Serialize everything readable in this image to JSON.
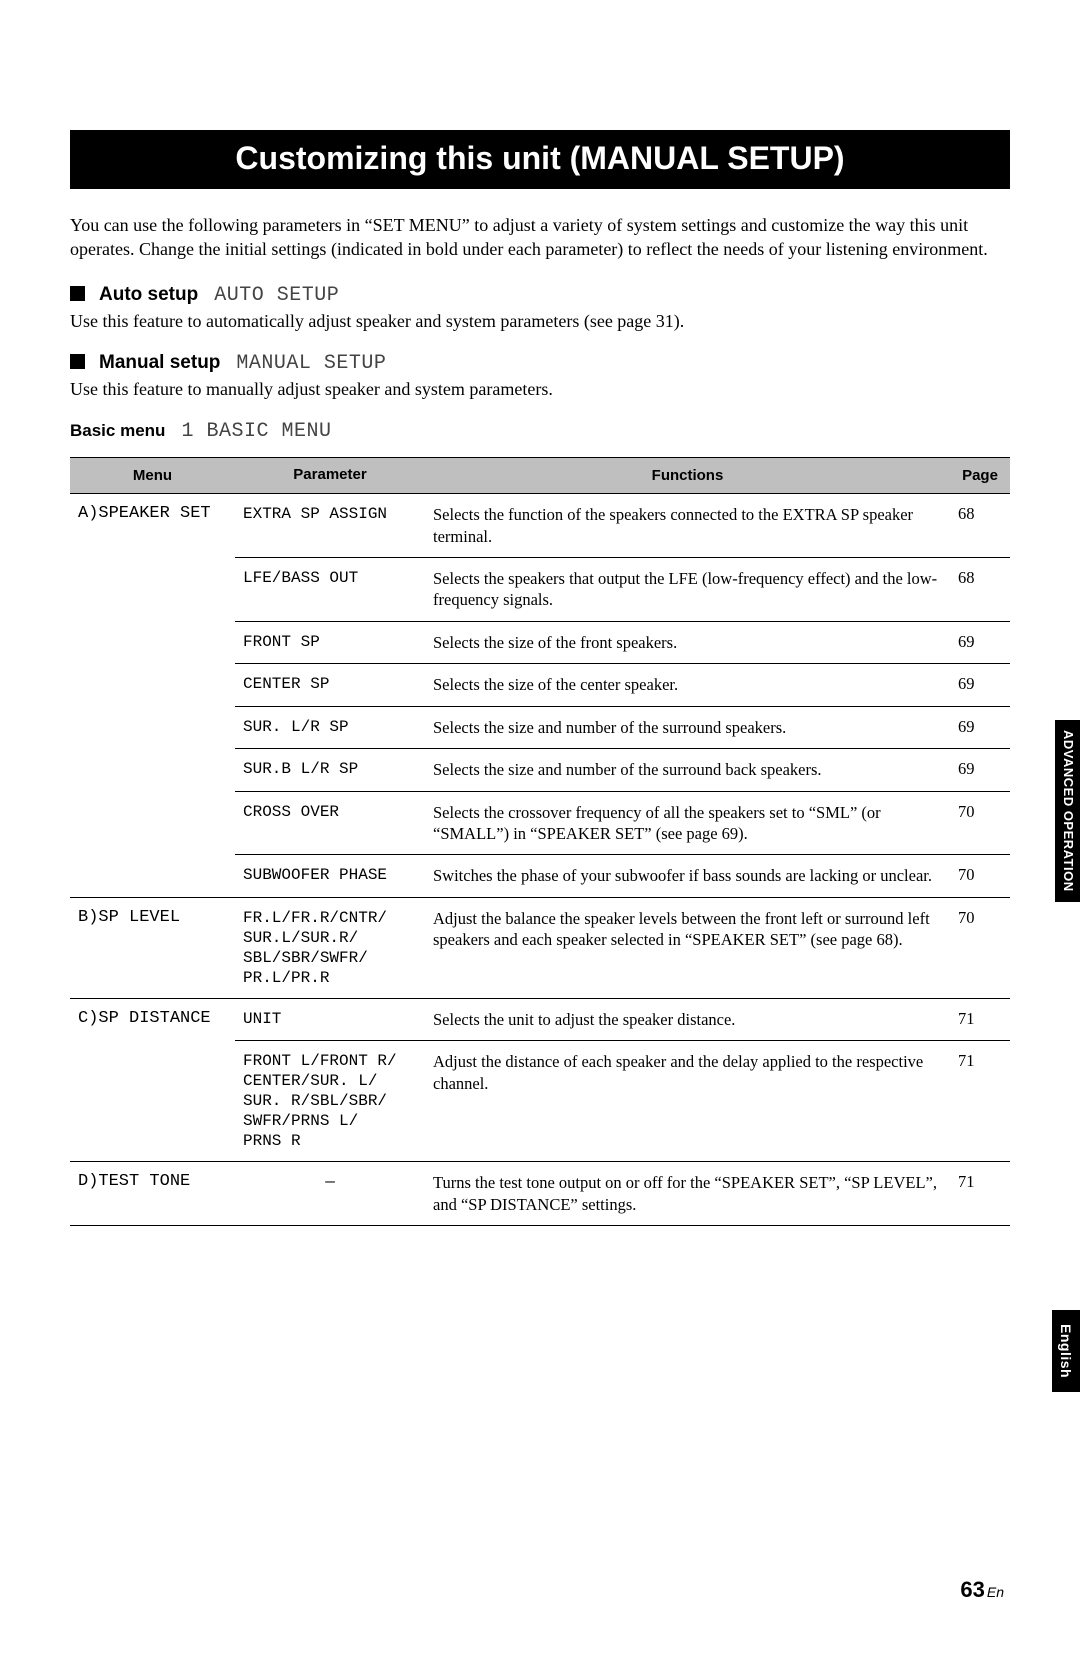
{
  "title": "Customizing this unit (MANUAL SETUP)",
  "intro": "You can use the following parameters in “SET MENU” to adjust a variety of system settings and customize the way this unit operates. Change the initial settings (indicated in bold under each parameter) to reflect the needs of your listening environment.",
  "sections": {
    "auto": {
      "label": "Auto setup",
      "osd": "AUTO SETUP",
      "desc": "Use this feature to automatically adjust speaker and system parameters (see page 31)."
    },
    "manual": {
      "label": "Manual setup",
      "osd": "MANUAL SETUP",
      "desc": "Use this feature to manually adjust speaker and system parameters."
    }
  },
  "basic": {
    "label": "Basic menu",
    "osd": "1 BASIC MENU"
  },
  "columns": {
    "menu": "Menu",
    "parameter": "Parameter",
    "functions": "Functions",
    "page": "Page"
  },
  "rows": [
    {
      "menu": "A)SPEAKER SET",
      "param": "EXTRA SP ASSIGN",
      "func": "Selects the function of the speakers connected to the EXTRA SP speaker terminal.",
      "page": "68",
      "group_end": false
    },
    {
      "menu": "",
      "param": "LFE/BASS OUT",
      "func": "Selects the speakers that output the LFE (low-frequency effect) and the low-frequency signals.",
      "page": "68",
      "group_end": false
    },
    {
      "menu": "",
      "param": "FRONT SP",
      "func": "Selects the size of the front speakers.",
      "page": "69",
      "group_end": false
    },
    {
      "menu": "",
      "param": "CENTER SP",
      "func": "Selects the size of the center speaker.",
      "page": "69",
      "group_end": false
    },
    {
      "menu": "",
      "param": "SUR. L/R SP",
      "func": "Selects the size and number of the surround speakers.",
      "page": "69",
      "group_end": false
    },
    {
      "menu": "",
      "param": "SUR.B L/R SP",
      "func": "Selects the size and number of the surround back speakers.",
      "page": "69",
      "group_end": false
    },
    {
      "menu": "",
      "param": "CROSS OVER",
      "func": "Selects the crossover frequency of all the speakers set to “SML” (or “SMALL”) in “SPEAKER SET” (see page 69).",
      "page": "70",
      "group_end": false
    },
    {
      "menu": "",
      "param": "SUBWOOFER PHASE",
      "func": "Switches the phase of your subwoofer if bass sounds are lacking or unclear.",
      "page": "70",
      "group_end": true
    },
    {
      "menu": "B)SP LEVEL",
      "param": "FR.L/FR.R/CNTR/\nSUR.L/SUR.R/\nSBL/SBR/SWFR/\nPR.L/PR.R",
      "func": "Adjust the balance the speaker levels between the front left or surround left speakers and each speaker selected in “SPEAKER SET” (see page 68).",
      "page": "70",
      "group_end": true
    },
    {
      "menu": "C)SP DISTANCE",
      "param": "UNIT",
      "func": "Selects the unit to adjust the speaker distance.",
      "page": "71",
      "group_end": false
    },
    {
      "menu": "",
      "param": "FRONT L/FRONT R/\nCENTER/SUR. L/\nSUR. R/SBL/SBR/\nSWFR/PRNS L/\nPRNS R",
      "func": "Adjust the distance of each speaker and the delay applied to the respective channel.",
      "page": "71",
      "group_end": true
    },
    {
      "menu": "D)TEST TONE",
      "param": "—",
      "func": "Turns the test tone output on or off for the “SPEAKER SET”, “SP LEVEL”, and “SP DISTANCE” settings.",
      "page": "71",
      "group_end": true,
      "dash": true
    }
  ],
  "side_tabs": {
    "advanced": "ADVANCED\nOPERATION",
    "english": "English"
  },
  "page_number": {
    "n": "63",
    "lang": "En"
  }
}
